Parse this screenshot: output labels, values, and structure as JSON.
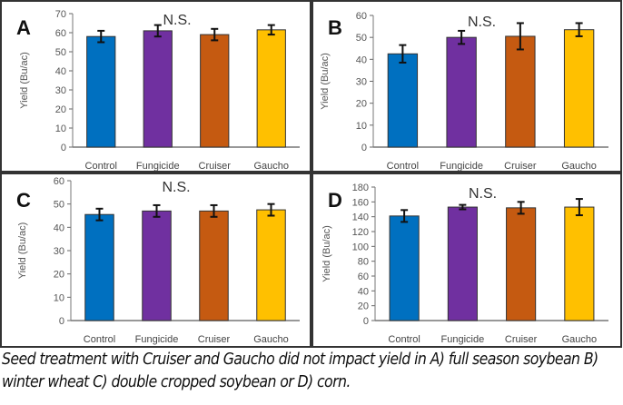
{
  "chart_data": [
    {
      "type": "bar",
      "panel_label": "A",
      "annotation": "N.S.",
      "ylabel": "Yield (Bu/ac)",
      "categories": [
        "Control",
        "Fungicide",
        "Cruiser",
        "Gaucho"
      ],
      "values": [
        58,
        61,
        59,
        61.5
      ],
      "errors": [
        3,
        3,
        3,
        2.5
      ],
      "ylim": [
        0,
        70
      ],
      "yticks": [
        0,
        10,
        20,
        30,
        40,
        50,
        60,
        70
      ]
    },
    {
      "type": "bar",
      "panel_label": "B",
      "annotation": "N.S.",
      "ylabel": "Yield (Bu/ac)",
      "categories": [
        "Control",
        "Fungicide",
        "Cruiser",
        "Gaucho"
      ],
      "values": [
        42.5,
        50,
        50.5,
        53.5
      ],
      "errors": [
        4,
        3,
        6,
        3
      ],
      "ylim": [
        0,
        60
      ],
      "yticks": [
        0,
        10,
        20,
        30,
        40,
        50,
        60
      ]
    },
    {
      "type": "bar",
      "panel_label": "C",
      "annotation": "N.S.",
      "ylabel": "Yield (Bu/ac)",
      "categories": [
        "Control",
        "Fungicide",
        "Cruiser",
        "Gaucho"
      ],
      "values": [
        45.5,
        47,
        47,
        47.5
      ],
      "errors": [
        2.5,
        2.5,
        2.5,
        2.5
      ],
      "ylim": [
        0,
        60
      ],
      "yticks": [
        0,
        10,
        20,
        30,
        40,
        50,
        60
      ]
    },
    {
      "type": "bar",
      "panel_label": "D",
      "annotation": "N.S.",
      "ylabel": "Yield (Bu/ac)",
      "categories": [
        "Control",
        "Fungicide",
        "Cruiser",
        "Gaucho"
      ],
      "values": [
        141,
        153,
        152,
        153
      ],
      "errors": [
        8,
        3,
        8,
        11
      ],
      "ylim": [
        0,
        180
      ],
      "yticks": [
        0,
        20,
        40,
        60,
        80,
        100,
        120,
        140,
        160,
        180
      ]
    }
  ],
  "colors": {
    "Control": "#0070c0",
    "Fungicide": "#7030a0",
    "Cruiser": "#c55a11",
    "Gaucho": "#ffc000"
  },
  "caption": "Seed treatment with Cruiser and Gaucho did not impact yield in A) full season soybean B) winter wheat C) double cropped soybean or D) corn."
}
